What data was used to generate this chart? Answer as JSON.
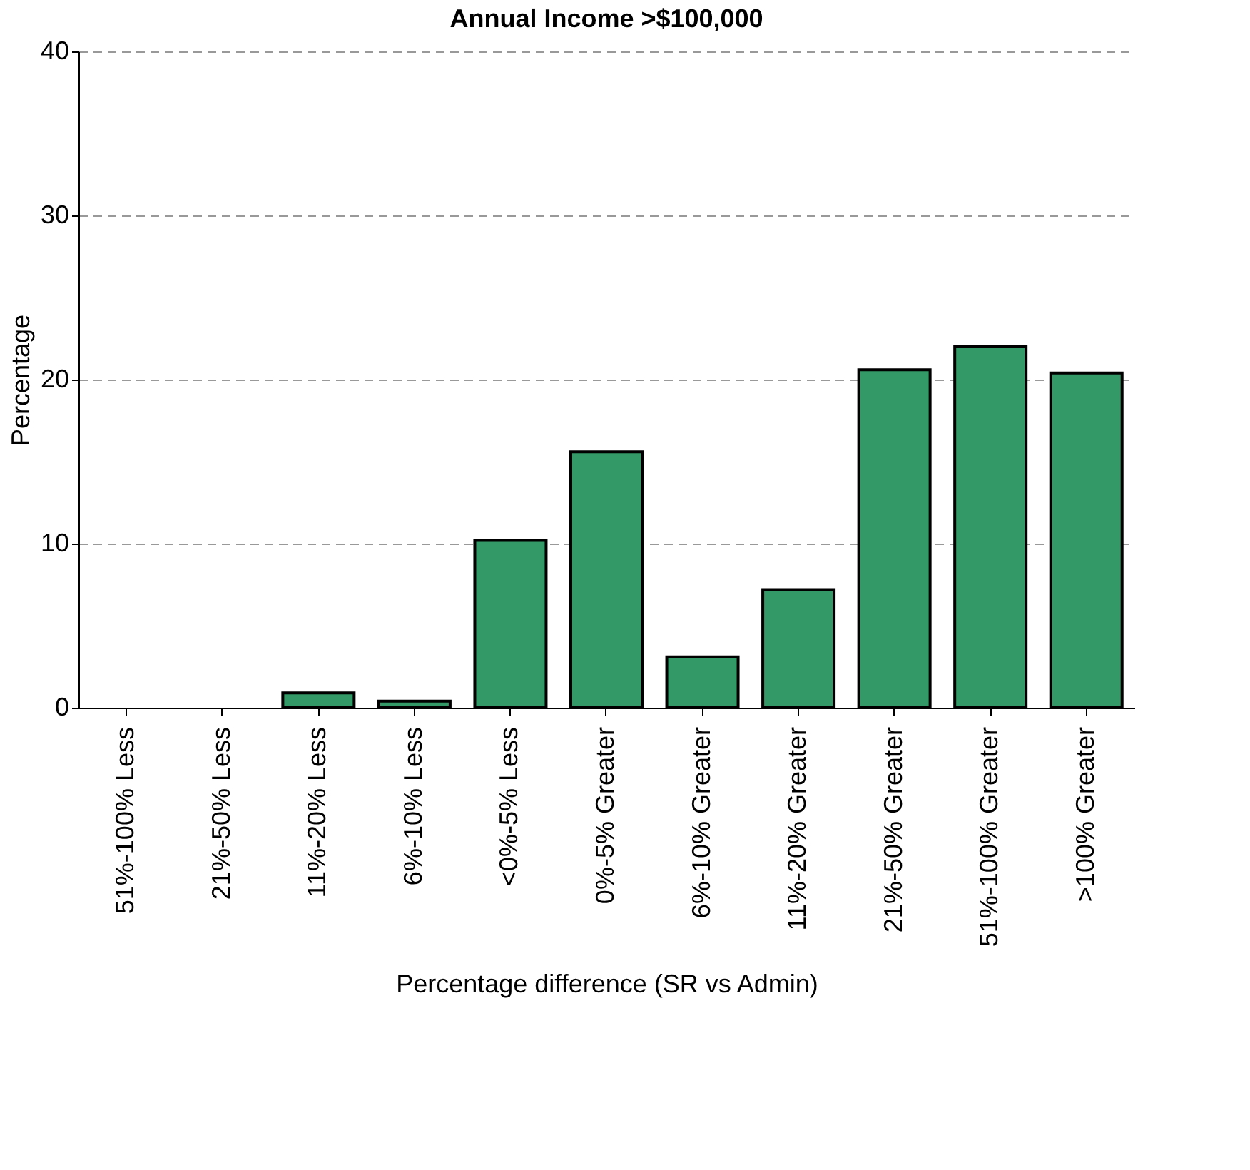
{
  "chart_data": {
    "type": "bar",
    "title": "Annual Income >$100,000",
    "xlabel": "Percentage difference (SR vs Admin)",
    "ylabel": "Percentage",
    "categories": [
      "51%-100% Less",
      "21%-50% Less",
      "11%-20% Less",
      "6%-10% Less",
      "<0%-5% Less",
      "0%-5% Greater",
      "6%-10% Greater",
      "11%-20% Greater",
      "21%-50% Greater",
      "51%-100% Greater",
      ">100% Greater"
    ],
    "values": [
      0,
      0,
      0.9,
      0.4,
      10.2,
      15.6,
      3.1,
      7.2,
      20.6,
      22.0,
      20.4
    ],
    "color": "#339966",
    "ylim": [
      0,
      40
    ],
    "yticks": [
      0,
      10,
      20,
      30,
      40
    ],
    "grid": "y"
  }
}
